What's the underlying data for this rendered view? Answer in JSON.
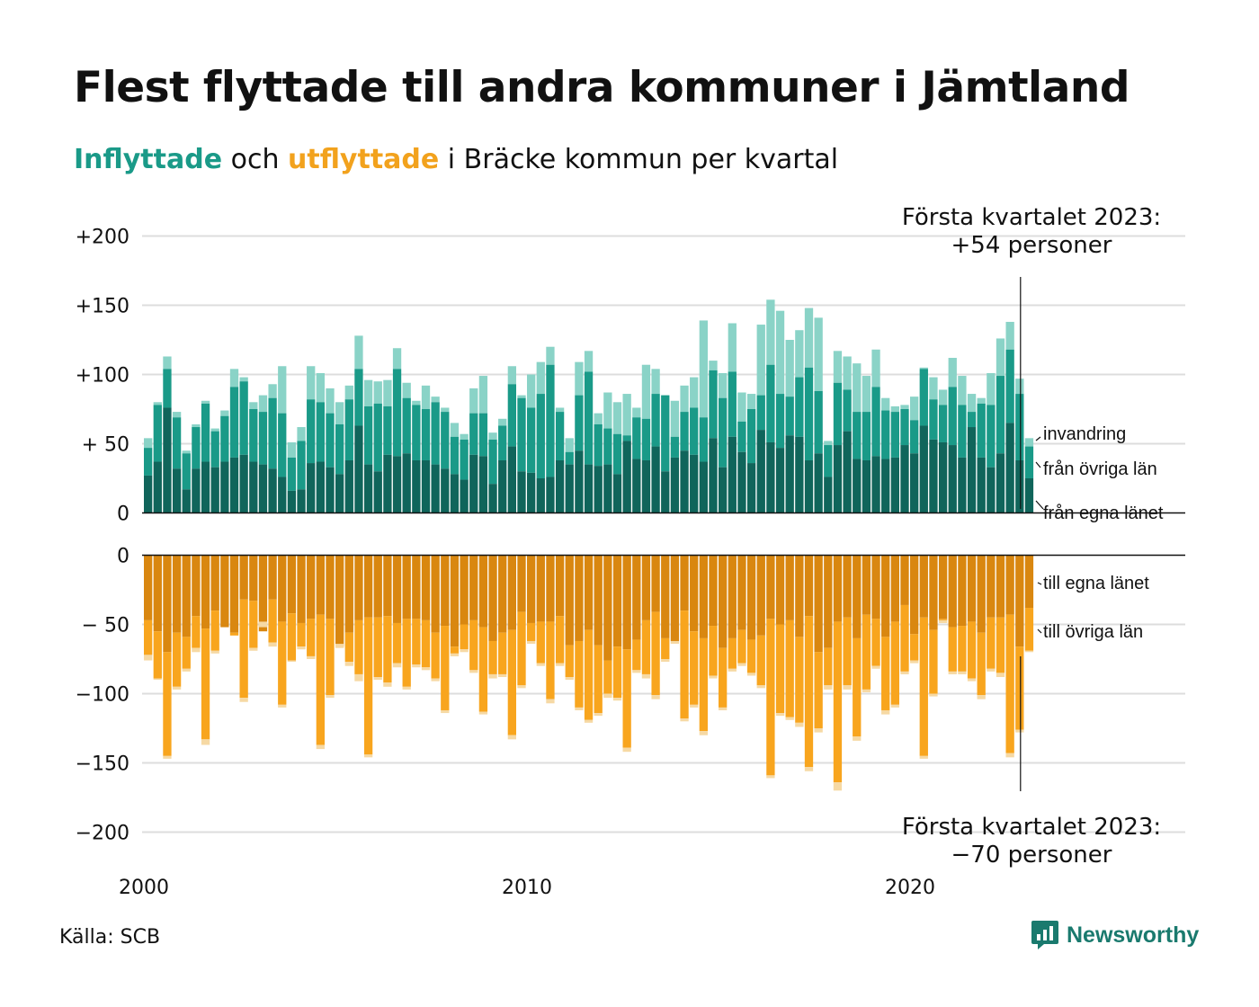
{
  "title": "Flest flyttade till andra kommuner i Jämtland",
  "subtitle": {
    "in_word": "Inflyttade",
    "mid": " och ",
    "out_word": "utflyttade",
    "rest": " i Bräcke kommun per kvartal"
  },
  "colors": {
    "in_own": "#10655b",
    "in_other": "#1a9a88",
    "in_immig": "#8ad3c7",
    "out_own": "#d98710",
    "out_other": "#f8a51e",
    "out_emig": "#f6d9a4",
    "grid": "#dddddd",
    "title_in": "#1a9a88",
    "title_out": "#f2a21d",
    "logo": "#1a7a6e"
  },
  "source": "Källa: SCB",
  "logo": {
    "text": "Newsworthy",
    "icon": "newsworthy-logo-icon"
  },
  "chart_data": {
    "type": "bar",
    "stacked": true,
    "mirrored": true,
    "period": "quarter",
    "first_quarter": "2000-Q1",
    "last_quarter": "2023-Q1",
    "x_ticks": [
      "2000",
      "2010",
      "2020"
    ],
    "y_ticks_top": [
      "+200",
      "+150",
      "+100",
      "+ 50",
      "0"
    ],
    "y_ticks_bottom": [
      "0",
      "− 50",
      "−100",
      "−150",
      "−200"
    ],
    "ylim_top": [
      0,
      200
    ],
    "ylim_bottom": [
      -200,
      0
    ],
    "grid": true,
    "series_labels_in": [
      "invandring",
      "från övriga län",
      "från egna länet"
    ],
    "series_labels_out": [
      "till egna länet",
      "till övriga län"
    ],
    "annotation_top": [
      "Första kvartalet 2023:",
      "+54 personer"
    ],
    "annotation_bottom": [
      "Första kvartalet 2023:",
      "−70 personer"
    ],
    "in_total": [
      54,
      80,
      113,
      73,
      45,
      64,
      81,
      61,
      74,
      104,
      98,
      80,
      85,
      93,
      106,
      51,
      62,
      106,
      101,
      90,
      80,
      92,
      128,
      96,
      95,
      96,
      119,
      94,
      81,
      92,
      84,
      76,
      65,
      57,
      90,
      99,
      58,
      68,
      106,
      85,
      100,
      109,
      120,
      76,
      54,
      109,
      117,
      72,
      87,
      80,
      86,
      76,
      107,
      104,
      60,
      81,
      92,
      98,
      139,
      110,
      101,
      137,
      87,
      86,
      136,
      154,
      146,
      125,
      132,
      148,
      141,
      52,
      117,
      113,
      108,
      99,
      118,
      83,
      77,
      78,
      84,
      105,
      98,
      89,
      112,
      99,
      86,
      83,
      101,
      126,
      138,
      97,
      54
    ],
    "in_other_cum": [
      47,
      78,
      104,
      69,
      43,
      62,
      79,
      59,
      70,
      91,
      95,
      75,
      73,
      83,
      72,
      40,
      52,
      82,
      80,
      72,
      64,
      82,
      104,
      77,
      79,
      77,
      104,
      83,
      78,
      75,
      80,
      73,
      55,
      53,
      72,
      72,
      53,
      63,
      93,
      83,
      76,
      86,
      107,
      73,
      44,
      85,
      102,
      64,
      61,
      57,
      56,
      69,
      68,
      86,
      85,
      55,
      73,
      76,
      69,
      103,
      83,
      102,
      66,
      75,
      85,
      107,
      86,
      84,
      98,
      105,
      88,
      49,
      94,
      89,
      73,
      73,
      91,
      74,
      73,
      75,
      67,
      104,
      82,
      78,
      91,
      78,
      73,
      79,
      78,
      99,
      118,
      86,
      48
    ],
    "in_own": [
      27,
      37,
      76,
      32,
      17,
      32,
      37,
      33,
      37,
      40,
      42,
      37,
      35,
      32,
      26,
      16,
      17,
      36,
      37,
      33,
      28,
      38,
      63,
      35,
      30,
      42,
      41,
      43,
      38,
      38,
      35,
      32,
      28,
      24,
      42,
      41,
      21,
      38,
      48,
      30,
      29,
      25,
      26,
      38,
      35,
      45,
      35,
      34,
      35,
      28,
      52,
      39,
      38,
      48,
      30,
      40,
      45,
      42,
      37,
      54,
      33,
      55,
      44,
      36,
      60,
      51,
      47,
      56,
      55,
      38,
      43,
      26,
      49,
      59,
      39,
      38,
      41,
      39,
      40,
      49,
      43,
      63,
      53,
      51,
      49,
      40,
      62,
      40,
      33,
      43,
      65,
      38,
      25
    ],
    "out_own": [
      47,
      55,
      70,
      56,
      59,
      44,
      53,
      40,
      52,
      56,
      32,
      33,
      55,
      32,
      48,
      42,
      49,
      46,
      43,
      46,
      66,
      56,
      47,
      45,
      45,
      44,
      49,
      46,
      46,
      47,
      56,
      51,
      66,
      50,
      47,
      52,
      62,
      56,
      54,
      41,
      49,
      48,
      48,
      44,
      65,
      62,
      54,
      65,
      76,
      66,
      68,
      61,
      47,
      41,
      60,
      62,
      40,
      55,
      60,
      51,
      67,
      60,
      54,
      61,
      58,
      46,
      50,
      47,
      59,
      44,
      70,
      67,
      48,
      45,
      60,
      43,
      46,
      59,
      48,
      36,
      57,
      45,
      54,
      46,
      52,
      51,
      48,
      56,
      45,
      45,
      43,
      66,
      38
    ],
    "out_other_cum": [
      72,
      89,
      145,
      95,
      82,
      67,
      133,
      69,
      52,
      58,
      103,
      67,
      48,
      63,
      108,
      76,
      66,
      73,
      137,
      101,
      64,
      77,
      86,
      144,
      88,
      92,
      78,
      95,
      79,
      81,
      89,
      112,
      71,
      68,
      83,
      113,
      86,
      86,
      130,
      94,
      62,
      78,
      104,
      78,
      88,
      110,
      119,
      114,
      100,
      103,
      139,
      83,
      86,
      101,
      75,
      62,
      118,
      108,
      127,
      87,
      110,
      82,
      78,
      85,
      94,
      159,
      114,
      117,
      121,
      153,
      125,
      94,
      164,
      94,
      131,
      97,
      80,
      112,
      108,
      84,
      76,
      145,
      100,
      47,
      84,
      84,
      89,
      101,
      82,
      85,
      143,
      126,
      69
    ],
    "out_total": [
      76,
      90,
      147,
      97,
      84,
      70,
      137,
      71,
      52,
      58,
      106,
      69,
      52,
      66,
      110,
      77,
      68,
      75,
      140,
      103,
      67,
      80,
      91,
      146,
      90,
      95,
      81,
      97,
      81,
      83,
      91,
      114,
      73,
      70,
      85,
      115,
      89,
      88,
      133,
      96,
      64,
      80,
      107,
      80,
      90,
      112,
      121,
      116,
      103,
      105,
      142,
      85,
      89,
      104,
      77,
      64,
      120,
      110,
      130,
      89,
      112,
      84,
      80,
      87,
      96,
      161,
      116,
      119,
      124,
      156,
      128,
      97,
      170,
      97,
      134,
      99,
      82,
      115,
      110,
      86,
      78,
      147,
      102,
      49,
      86,
      86,
      91,
      104,
      84,
      88,
      146,
      128,
      70
    ]
  }
}
